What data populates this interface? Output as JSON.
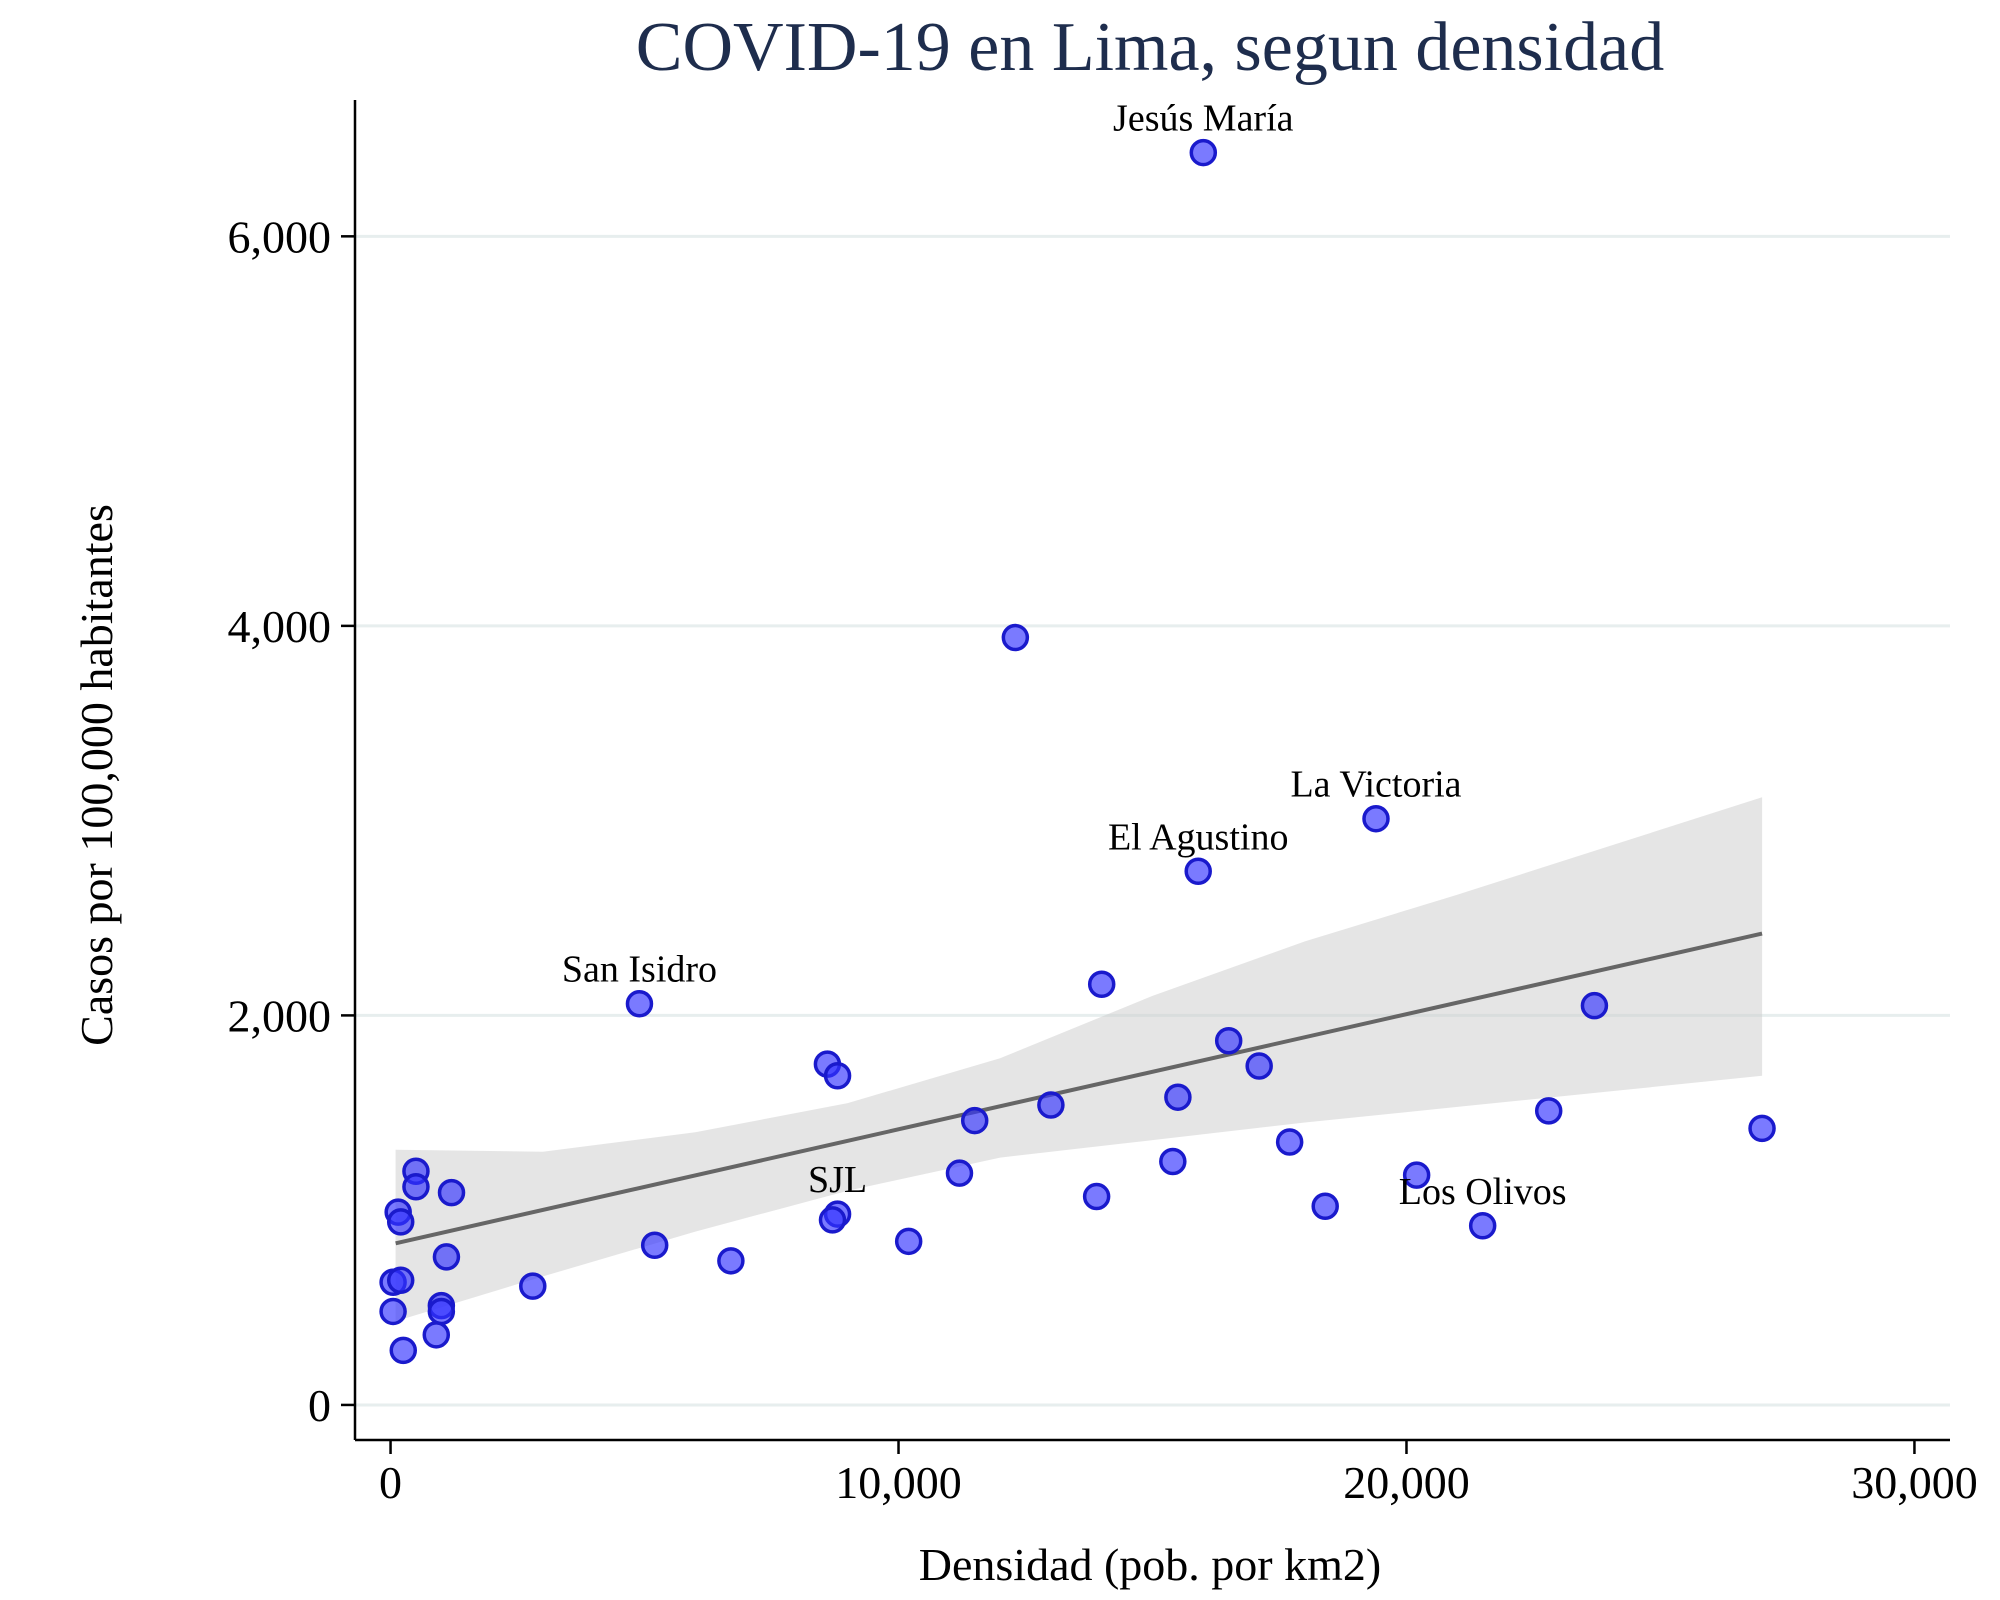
{
  "chart_data": {
    "type": "scatter",
    "title": "COVID-19 en Lima, segun densidad",
    "xlabel": "Densidad (pob. por km2)",
    "ylabel": "Casos por 100,000 habitantes",
    "xlim": [
      -700,
      30700
    ],
    "ylim": [
      -180,
      6700
    ],
    "x_ticks": [
      0,
      10000,
      20000,
      30000
    ],
    "x_tick_labels": [
      "0",
      "10,000",
      "20,000",
      "30,000"
    ],
    "y_ticks": [
      0,
      2000,
      4000,
      6000
    ],
    "y_tick_labels": [
      "0",
      "2,000",
      "4,000",
      "6,000"
    ],
    "grid": "horizontal",
    "colors": {
      "points": "#3333ff",
      "point_edge": "#1a1acc",
      "fit_line": "#666666",
      "ci_band": "#cccccc",
      "title": "#1e2d4d"
    },
    "points": [
      {
        "x": 16000,
        "y": 6430,
        "label": "Jesús María"
      },
      {
        "x": 12300,
        "y": 3940,
        "label": ""
      },
      {
        "x": 19400,
        "y": 3010,
        "label": "La Victoria"
      },
      {
        "x": 15900,
        "y": 2740,
        "label": "El Agustino"
      },
      {
        "x": 4900,
        "y": 2060,
        "label": "San Isidro"
      },
      {
        "x": 8800,
        "y": 980,
        "label": "SJL"
      },
      {
        "x": 21500,
        "y": 920,
        "label": "Los Olivos"
      },
      {
        "x": 14000,
        "y": 2160,
        "label": ""
      },
      {
        "x": 23700,
        "y": 2050,
        "label": ""
      },
      {
        "x": 16500,
        "y": 1870,
        "label": ""
      },
      {
        "x": 17100,
        "y": 1740,
        "label": ""
      },
      {
        "x": 8600,
        "y": 1750,
        "label": ""
      },
      {
        "x": 8800,
        "y": 1690,
        "label": ""
      },
      {
        "x": 13000,
        "y": 1540,
        "label": ""
      },
      {
        "x": 15500,
        "y": 1580,
        "label": ""
      },
      {
        "x": 11500,
        "y": 1460,
        "label": ""
      },
      {
        "x": 22800,
        "y": 1510,
        "label": ""
      },
      {
        "x": 27000,
        "y": 1420,
        "label": ""
      },
      {
        "x": 17700,
        "y": 1350,
        "label": ""
      },
      {
        "x": 15400,
        "y": 1250,
        "label": ""
      },
      {
        "x": 11200,
        "y": 1190,
        "label": ""
      },
      {
        "x": 20200,
        "y": 1180,
        "label": ""
      },
      {
        "x": 13900,
        "y": 1070,
        "label": ""
      },
      {
        "x": 18400,
        "y": 1020,
        "label": ""
      },
      {
        "x": 8700,
        "y": 950,
        "label": ""
      },
      {
        "x": 10200,
        "y": 840,
        "label": ""
      },
      {
        "x": 5200,
        "y": 820,
        "label": ""
      },
      {
        "x": 6700,
        "y": 740,
        "label": ""
      },
      {
        "x": 2800,
        "y": 610,
        "label": ""
      },
      {
        "x": 500,
        "y": 1200,
        "label": ""
      },
      {
        "x": 500,
        "y": 1120,
        "label": ""
      },
      {
        "x": 1200,
        "y": 1090,
        "label": ""
      },
      {
        "x": 150,
        "y": 990,
        "label": ""
      },
      {
        "x": 200,
        "y": 940,
        "label": ""
      },
      {
        "x": 1100,
        "y": 760,
        "label": ""
      },
      {
        "x": 50,
        "y": 630,
        "label": ""
      },
      {
        "x": 200,
        "y": 640,
        "label": ""
      },
      {
        "x": 50,
        "y": 480,
        "label": ""
      },
      {
        "x": 1000,
        "y": 510,
        "label": ""
      },
      {
        "x": 1000,
        "y": 480,
        "label": ""
      },
      {
        "x": 900,
        "y": 360,
        "label": ""
      },
      {
        "x": 250,
        "y": 280,
        "label": ""
      }
    ],
    "fit_line": {
      "x": [
        100,
        27000
      ],
      "y": [
        830,
        2420
      ]
    },
    "ci_band": {
      "x": [
        100,
        3000,
        6000,
        9000,
        12000,
        15000,
        18000,
        21000,
        24000,
        27000
      ],
      "lower": [
        430,
        660,
        890,
        1100,
        1270,
        1360,
        1450,
        1530,
        1610,
        1690
      ],
      "upper": [
        1310,
        1300,
        1400,
        1550,
        1780,
        2100,
        2380,
        2620,
        2870,
        3120
      ]
    }
  }
}
